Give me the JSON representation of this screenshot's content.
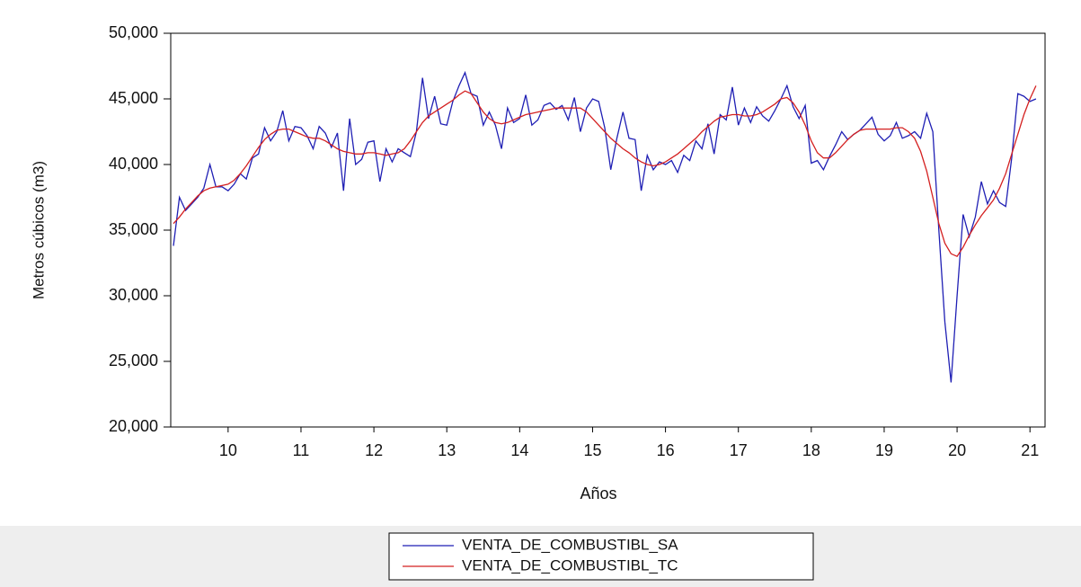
{
  "chart_data": {
    "type": "line",
    "x_label": "Años",
    "y_label": "Metros cúbicos (m3)",
    "x": [
      9.75,
      9.833,
      9.917,
      10,
      10.083,
      10.167,
      10.25,
      10.333,
      10.417,
      10.5,
      10.583,
      10.667,
      10.75,
      10.833,
      10.917,
      11,
      11.083,
      11.167,
      11.25,
      11.333,
      11.417,
      11.5,
      11.583,
      11.667,
      11.75,
      11.833,
      11.917,
      12,
      12.083,
      12.167,
      12.25,
      12.333,
      12.417,
      12.5,
      12.583,
      12.667,
      12.75,
      12.833,
      12.917,
      13,
      13.083,
      13.167,
      13.25,
      13.333,
      13.417,
      13.5,
      13.583,
      13.667,
      13.75,
      13.833,
      13.917,
      14,
      14.083,
      14.167,
      14.25,
      14.333,
      14.417,
      14.5,
      14.583,
      14.667,
      14.75,
      14.833,
      14.917,
      15,
      15.083,
      15.167,
      15.25,
      15.333,
      15.417,
      15.5,
      15.583,
      15.667,
      15.75,
      15.833,
      15.917,
      16,
      16.083,
      16.167,
      16.25,
      16.333,
      16.417,
      16.5,
      16.583,
      16.667,
      16.75,
      16.833,
      16.917,
      17,
      17.083,
      17.167,
      17.25,
      17.333,
      17.417,
      17.5,
      17.583,
      17.667,
      17.75,
      17.833,
      17.917,
      18,
      18.083,
      18.167,
      18.25,
      18.333,
      18.417,
      18.5,
      18.583,
      18.667,
      18.75,
      18.833,
      18.917,
      19,
      19.083,
      19.167,
      19.25,
      19.333,
      19.417,
      19.5,
      19.583,
      19.667,
      19.75,
      19.833,
      19.917,
      20,
      20.083,
      20.167,
      20.25,
      20.333,
      20.417,
      20.5,
      20.583,
      20.667,
      20.75,
      20.833,
      20.917,
      21,
      21.083,
      21.167,
      21.25,
      21.333,
      21.417,
      21.5,
      21.583
    ],
    "series": [
      {
        "name": "VENTA_DE_COMBUSTIBL_SA",
        "color": "#1f1fb4",
        "values": [
          33800,
          37500,
          36500,
          37000,
          37500,
          38200,
          40000,
          38300,
          38300,
          38000,
          38500,
          39300,
          38900,
          40500,
          40800,
          42800,
          41800,
          42500,
          44100,
          41800,
          42900,
          42800,
          42200,
          41200,
          42900,
          42400,
          41300,
          42400,
          38000,
          43500,
          40000,
          40400,
          41700,
          41800,
          38700,
          41200,
          40200,
          41200,
          40900,
          40600,
          42500,
          46600,
          43500,
          45200,
          43100,
          43000,
          44800,
          46000,
          47000,
          45400,
          45200,
          43000,
          44000,
          43000,
          41200,
          44300,
          43200,
          43500,
          45300,
          43000,
          43400,
          44500,
          44700,
          44200,
          44500,
          43400,
          45100,
          42500,
          44300,
          45000,
          44800,
          42800,
          39600,
          42000,
          44000,
          42000,
          41900,
          38000,
          40700,
          39600,
          40200,
          40000,
          40300,
          39400,
          40700,
          40300,
          41800,
          41200,
          43100,
          40800,
          43800,
          43400,
          45900,
          43000,
          44300,
          43200,
          44400,
          43700,
          43300,
          44100,
          45000,
          46000,
          44400,
          43500,
          44500,
          40100,
          40300,
          39600,
          40600,
          41500,
          42500,
          41900,
          42300,
          42600,
          43100,
          43600,
          42300,
          41800,
          42200,
          43200,
          42000,
          42200,
          42500,
          42000,
          43900,
          42500,
          35000,
          28000,
          23400,
          30000,
          36200,
          34500,
          36000,
          38700,
          37000,
          38000,
          37100,
          36800,
          40500,
          45400,
          45200,
          44800,
          45000
        ]
      },
      {
        "name": "VENTA_DE_COMBUSTIBL_TC",
        "color": "#d42020",
        "values": [
          35500,
          36000,
          36600,
          37100,
          37600,
          38000,
          38200,
          38300,
          38400,
          38500,
          38800,
          39300,
          39900,
          40600,
          41300,
          41900,
          42300,
          42600,
          42700,
          42700,
          42500,
          42300,
          42100,
          42000,
          42000,
          41800,
          41500,
          41200,
          41000,
          40900,
          40800,
          40800,
          40900,
          40900,
          40800,
          40700,
          40800,
          40900,
          41200,
          41800,
          42500,
          43200,
          43700,
          44000,
          44300,
          44600,
          44900,
          45300,
          45600,
          45400,
          44700,
          44000,
          43500,
          43200,
          43100,
          43200,
          43400,
          43600,
          43800,
          43900,
          44000,
          44100,
          44200,
          44300,
          44300,
          44300,
          44300,
          44300,
          44000,
          43500,
          43000,
          42500,
          42000,
          41600,
          41200,
          40900,
          40500,
          40200,
          40000,
          39900,
          40000,
          40200,
          40500,
          40800,
          41200,
          41600,
          42000,
          42500,
          42900,
          43300,
          43600,
          43700,
          43800,
          43800,
          43700,
          43700,
          43800,
          44000,
          44300,
          44600,
          45000,
          45100,
          44700,
          44000,
          43000,
          41800,
          40900,
          40500,
          40500,
          40900,
          41400,
          41900,
          42300,
          42600,
          42700,
          42700,
          42700,
          42700,
          42700,
          42800,
          42800,
          42500,
          42000,
          41000,
          39500,
          37500,
          35500,
          34000,
          33200,
          33000,
          33700,
          34600,
          35400,
          36100,
          36700,
          37300,
          38200,
          39300,
          40800,
          42300,
          43800,
          45000,
          46000
        ]
      }
    ],
    "xlim": [
      9.75,
      21.67
    ],
    "xticks": [
      {
        "value": 10.5,
        "label": "10"
      },
      {
        "value": 11.5,
        "label": "11"
      },
      {
        "value": 12.5,
        "label": "12"
      },
      {
        "value": 13.5,
        "label": "13"
      },
      {
        "value": 14.5,
        "label": "14"
      },
      {
        "value": 15.5,
        "label": "15"
      },
      {
        "value": 16.5,
        "label": "16"
      },
      {
        "value": 17.5,
        "label": "17"
      },
      {
        "value": 18.5,
        "label": "18"
      },
      {
        "value": 19.5,
        "label": "19"
      },
      {
        "value": 20.5,
        "label": "20"
      },
      {
        "value": 21.5,
        "label": "21"
      }
    ],
    "ylim": [
      20000,
      50000
    ],
    "yticks": [
      {
        "value": 20000,
        "label": "20,000"
      },
      {
        "value": 25000,
        "label": "25,000"
      },
      {
        "value": 30000,
        "label": "30,000"
      },
      {
        "value": 35000,
        "label": "35,000"
      },
      {
        "value": 40000,
        "label": "40,000"
      },
      {
        "value": 45000,
        "label": "45,000"
      },
      {
        "value": 50000,
        "label": "50,000"
      }
    ],
    "legend": "bottom"
  }
}
